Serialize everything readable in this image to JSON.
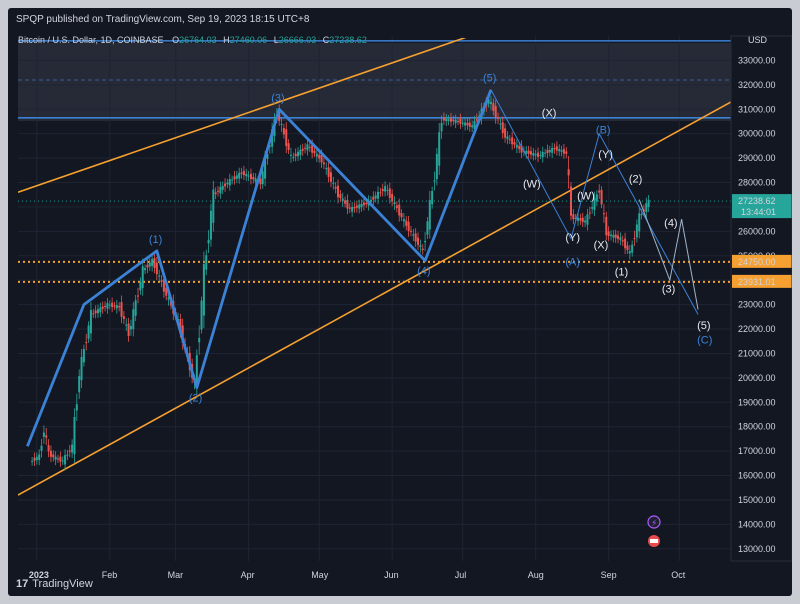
{
  "header": {
    "published": "SPQP published on TradingView.com, Sep 19, 2023 18:15 UTC+8"
  },
  "symbol": {
    "name": "Bitcoin / U.S. Dollar, 1D, COINBASE",
    "o_label": "O",
    "o_value": "26764.03",
    "h_label": "H",
    "h_value": "27460.06",
    "l_label": "L",
    "l_value": "26666.03",
    "c_label": "C",
    "c_value": "27238.62"
  },
  "footer": {
    "brand": "TradingView"
  },
  "colors": {
    "background": "#131722",
    "wave": "#3b82d6",
    "channel": "#f5a030",
    "up": "#26a69a",
    "down": "#ef5350",
    "projection": "#9fb4c8"
  },
  "chart_data": {
    "type": "line",
    "currency": "USD",
    "current_price": "27238.62",
    "countdown": "13:44:01",
    "y_range": [
      12500,
      34000
    ],
    "y_ticks": [
      "33000.00",
      "32000.00",
      "31000.00",
      "30000.00",
      "29000.00",
      "28000.00",
      "27000.00",
      "26000.00",
      "25000.00",
      "24000.00",
      "23000.00",
      "22000.00",
      "21000.00",
      "20000.00",
      "19000.00",
      "18000.00",
      "17000.00",
      "16000.00",
      "15000.00",
      "14000.00",
      "13000.00"
    ],
    "x_ticks": [
      "2023",
      "Feb",
      "Mar",
      "Apr",
      "May",
      "Jun",
      "Jul",
      "Aug",
      "Sep",
      "Oct"
    ],
    "horizontal_levels": [
      {
        "label": "24750.00",
        "value": 24750,
        "style": "dotted",
        "color": "#f5a030"
      },
      {
        "label": "23931.01",
        "value": 23931,
        "style": "dotted",
        "color": "#f5a030"
      },
      {
        "value": 33800,
        "style": "solid",
        "color": "#3b82d6"
      },
      {
        "value": 30650,
        "style": "solid",
        "color": "#3b82d6"
      }
    ],
    "price_series": [
      {
        "date": "2022-12-30",
        "v": 16550
      },
      {
        "date": "2023-01-03",
        "v": 16800
      },
      {
        "date": "2023-01-05",
        "v": 17900
      },
      {
        "date": "2023-01-07",
        "v": 16900
      },
      {
        "date": "2023-01-10",
        "v": 16700
      },
      {
        "date": "2023-01-13",
        "v": 16600
      },
      {
        "date": "2023-01-17",
        "v": 17200
      },
      {
        "date": "2023-01-20",
        "v": 20200
      },
      {
        "date": "2023-01-25",
        "v": 22600
      },
      {
        "date": "2023-02-01",
        "v": 23000
      },
      {
        "date": "2023-02-06",
        "v": 22900
      },
      {
        "date": "2023-02-10",
        "v": 21800
      },
      {
        "date": "2023-02-16",
        "v": 24400
      },
      {
        "date": "2023-02-20",
        "v": 24800
      },
      {
        "date": "2023-02-26",
        "v": 23400
      },
      {
        "date": "2023-03-03",
        "v": 22300
      },
      {
        "date": "2023-03-10",
        "v": 19700
      },
      {
        "date": "2023-03-14",
        "v": 24300
      },
      {
        "date": "2023-03-18",
        "v": 27500
      },
      {
        "date": "2023-03-24",
        "v": 28000
      },
      {
        "date": "2023-03-30",
        "v": 28400
      },
      {
        "date": "2023-04-07",
        "v": 28000
      },
      {
        "date": "2023-04-14",
        "v": 30900
      },
      {
        "date": "2023-04-20",
        "v": 29000
      },
      {
        "date": "2023-04-27",
        "v": 29500
      },
      {
        "date": "2023-05-03",
        "v": 28900
      },
      {
        "date": "2023-05-10",
        "v": 27500
      },
      {
        "date": "2023-05-15",
        "v": 26900
      },
      {
        "date": "2023-05-23",
        "v": 27200
      },
      {
        "date": "2023-05-30",
        "v": 27800
      },
      {
        "date": "2023-06-07",
        "v": 26400
      },
      {
        "date": "2023-06-15",
        "v": 25200
      },
      {
        "date": "2023-06-20",
        "v": 28300
      },
      {
        "date": "2023-06-23",
        "v": 30600
      },
      {
        "date": "2023-06-30",
        "v": 30500
      },
      {
        "date": "2023-07-06",
        "v": 30300
      },
      {
        "date": "2023-07-13",
        "v": 31400
      },
      {
        "date": "2023-07-20",
        "v": 29900
      },
      {
        "date": "2023-07-27",
        "v": 29300
      },
      {
        "date": "2023-08-03",
        "v": 29100
      },
      {
        "date": "2023-08-10",
        "v": 29400
      },
      {
        "date": "2023-08-15",
        "v": 29200
      },
      {
        "date": "2023-08-17",
        "v": 26600
      },
      {
        "date": "2023-08-23",
        "v": 26400
      },
      {
        "date": "2023-08-29",
        "v": 27700
      },
      {
        "date": "2023-09-01",
        "v": 25900
      },
      {
        "date": "2023-09-07",
        "v": 25700
      },
      {
        "date": "2023-09-11",
        "v": 25100
      },
      {
        "date": "2023-09-15",
        "v": 26600
      },
      {
        "date": "2023-09-19",
        "v": 27238
      }
    ],
    "wave_points": [
      {
        "date": "2022-12-28",
        "v": 17200,
        "label": ""
      },
      {
        "date": "2023-01-21",
        "v": 23000,
        "label": ""
      },
      {
        "date": "2023-02-21",
        "v": 25200,
        "label": "(1)"
      },
      {
        "date": "2023-03-10",
        "v": 19600,
        "label": "(2)"
      },
      {
        "date": "2023-04-14",
        "v": 31000,
        "label": "(3)"
      },
      {
        "date": "2023-06-15",
        "v": 24800,
        "label": "(4)"
      },
      {
        "date": "2023-07-13",
        "v": 31800,
        "label": "(5)"
      }
    ],
    "subwave_labels": [
      {
        "text": "(X)",
        "date": "2023-08-07",
        "v": 30700
      },
      {
        "text": "(W)",
        "date": "2023-07-30",
        "v": 27800
      },
      {
        "text": "(B)",
        "date": "2023-08-30",
        "v": 30000
      },
      {
        "text": "(Y)",
        "date": "2023-08-31",
        "v": 29000
      },
      {
        "text": "(W)",
        "date": "2023-08-22",
        "v": 27300
      },
      {
        "text": "(Y)",
        "date": "2023-08-17",
        "v": 25600
      },
      {
        "text": "(A)",
        "date": "2023-08-17",
        "v": 24600
      },
      {
        "text": "(X)",
        "date": "2023-08-29",
        "v": 25300
      },
      {
        "text": "(1)",
        "date": "2023-09-07",
        "v": 24200
      },
      {
        "text": "(2)",
        "date": "2023-09-13",
        "v": 28000
      },
      {
        "text": "(4)",
        "date": "2023-09-28",
        "v": 26200
      },
      {
        "text": "(3)",
        "date": "2023-09-27",
        "v": 23500
      },
      {
        "text": "(5)",
        "date": "2023-10-12",
        "v": 22000
      },
      {
        "text": "(C)",
        "date": "2023-10-12",
        "v": 21400
      }
    ],
    "projection_path": [
      {
        "date": "2023-09-14",
        "v": 27300
      },
      {
        "date": "2023-09-27",
        "v": 24000
      },
      {
        "date": "2023-10-02",
        "v": 26500
      },
      {
        "date": "2023-10-09",
        "v": 22800
      }
    ],
    "abc_path": [
      {
        "date": "2023-07-13",
        "v": 31800
      },
      {
        "date": "2023-08-16",
        "v": 25700
      },
      {
        "date": "2023-08-28",
        "v": 30000
      },
      {
        "date": "2023-10-09",
        "v": 22600
      }
    ]
  }
}
